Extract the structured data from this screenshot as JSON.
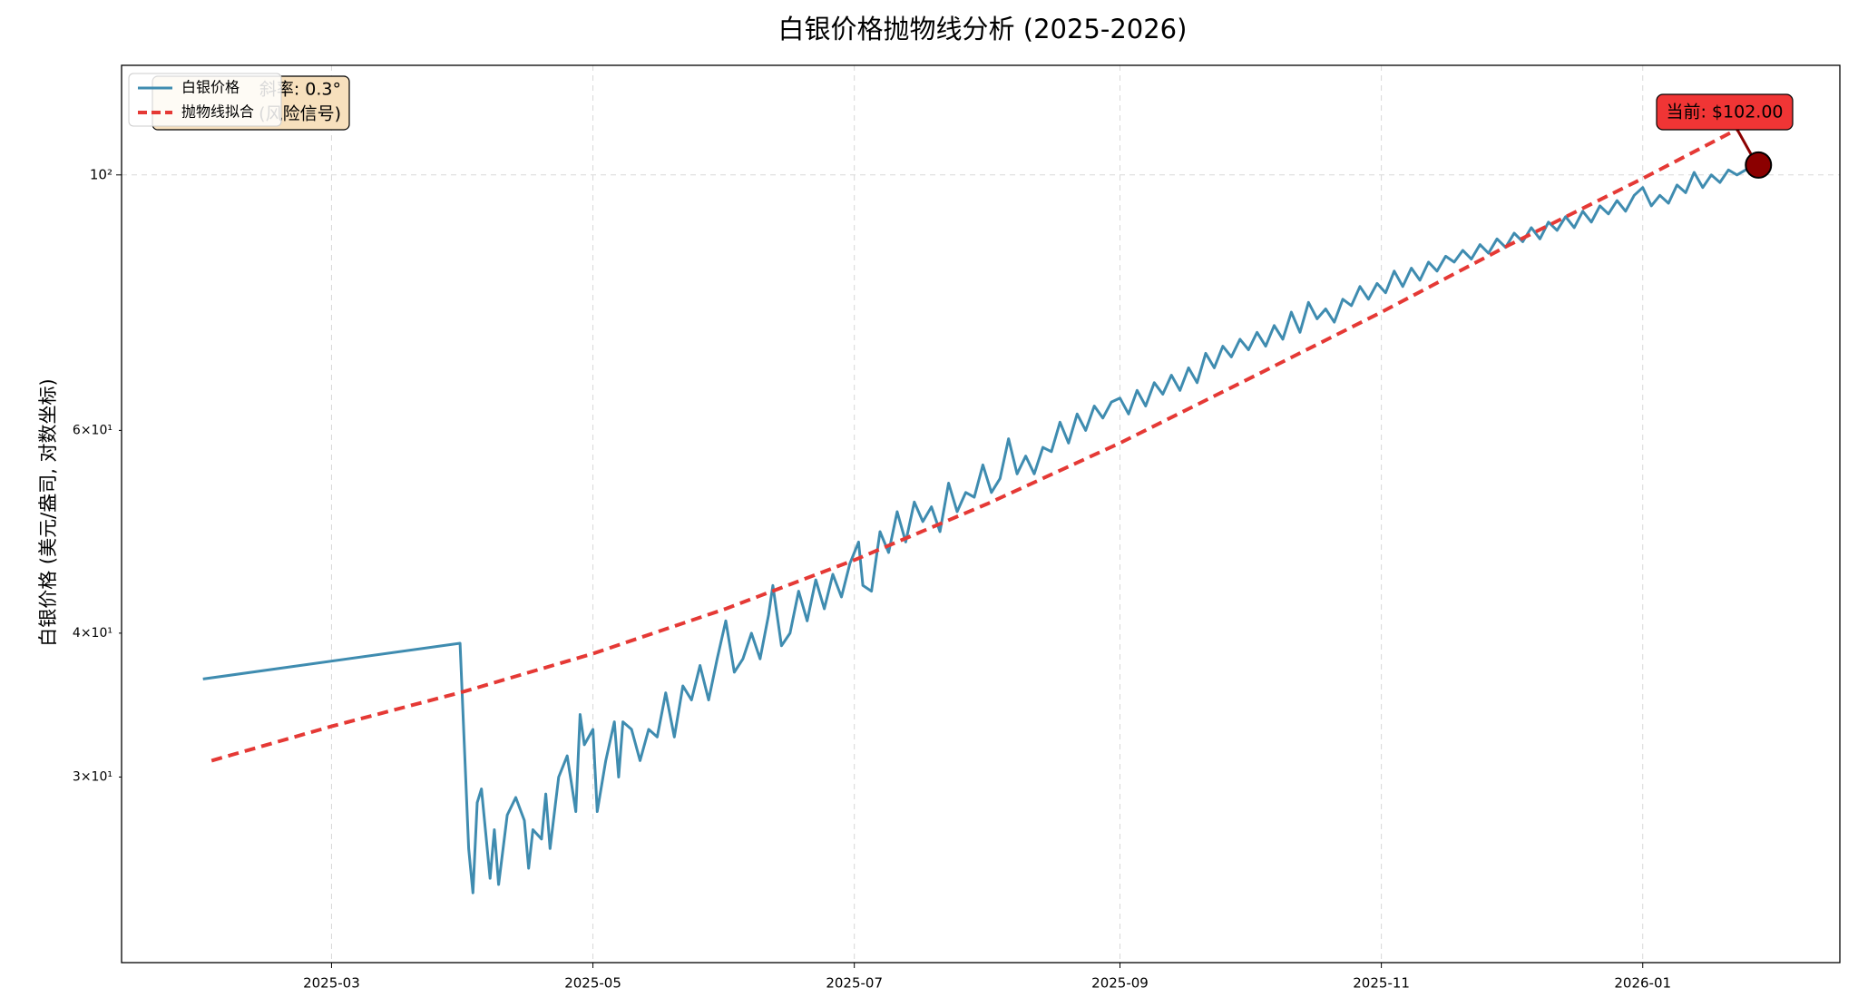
{
  "chart_data": {
    "type": "line",
    "title": "白银价格抛物线分析 (2025-2026)",
    "ylabel": "白银价格 (美元/盎司, 对数坐标)",
    "yscale": "log",
    "grid": true,
    "legend": "upper left",
    "xlim": [
      "2025-01-11",
      "2026-02-16"
    ],
    "xticks": [
      "2025-03",
      "2025-05",
      "2025-07",
      "2025-09",
      "2025-11",
      "2026-01"
    ],
    "ylim": [
      20.7,
      124.5
    ],
    "yticks": [
      {
        "value": 100,
        "label": "10²"
      }
    ],
    "yminorticks": [
      {
        "value": 30,
        "label": "3×10¹"
      },
      {
        "value": 40,
        "label": "4×10¹"
      },
      {
        "value": 60,
        "label": "6×10¹"
      }
    ],
    "info_box": [
      "斜率: 0.3°",
      "(风险信号)"
    ],
    "annotation": "当前: $102.00",
    "series": [
      {
        "name": "白银价格",
        "color": "#3f8cb0",
        "style": "solid",
        "x": [
          "2025-01-30",
          "2025-03-31",
          "2025-04-02",
          "2025-04-03",
          "2025-04-04",
          "2025-04-05",
          "2025-04-07",
          "2025-04-08",
          "2025-04-09",
          "2025-04-11",
          "2025-04-13",
          "2025-04-15",
          "2025-04-16",
          "2025-04-17",
          "2025-04-19",
          "2025-04-20",
          "2025-04-21",
          "2025-04-23",
          "2025-04-25",
          "2025-04-27",
          "2025-04-28",
          "2025-04-29",
          "2025-05-01",
          "2025-05-02",
          "2025-05-04",
          "2025-05-06",
          "2025-05-07",
          "2025-05-08",
          "2025-05-10",
          "2025-05-12",
          "2025-05-14",
          "2025-05-16",
          "2025-05-18",
          "2025-05-20",
          "2025-05-22",
          "2025-05-24",
          "2025-05-26",
          "2025-05-28",
          "2025-05-30",
          "2025-06-01",
          "2025-06-03",
          "2025-06-05",
          "2025-06-07",
          "2025-06-09",
          "2025-06-11",
          "2025-06-12",
          "2025-06-14",
          "2025-06-16",
          "2025-06-18",
          "2025-06-20",
          "2025-06-22",
          "2025-06-24",
          "2025-06-26",
          "2025-06-28",
          "2025-06-30",
          "2025-07-02",
          "2025-07-03",
          "2025-07-05",
          "2025-07-07",
          "2025-07-09",
          "2025-07-11",
          "2025-07-13",
          "2025-07-15",
          "2025-07-17",
          "2025-07-19",
          "2025-07-21",
          "2025-07-23",
          "2025-07-25",
          "2025-07-27",
          "2025-07-29",
          "2025-07-31",
          "2025-08-02",
          "2025-08-04",
          "2025-08-06",
          "2025-08-08",
          "2025-08-10",
          "2025-08-12",
          "2025-08-14",
          "2025-08-16",
          "2025-08-18",
          "2025-08-20",
          "2025-08-22",
          "2025-08-24",
          "2025-08-26",
          "2025-08-28",
          "2025-08-30",
          "2025-09-01",
          "2025-09-03",
          "2025-09-05",
          "2025-09-07",
          "2025-09-09",
          "2025-09-11",
          "2025-09-13",
          "2025-09-15",
          "2025-09-17",
          "2025-09-19",
          "2025-09-21",
          "2025-09-23",
          "2025-09-25",
          "2025-09-27",
          "2025-09-29",
          "2025-10-01",
          "2025-10-03",
          "2025-10-05",
          "2025-10-07",
          "2025-10-09",
          "2025-10-11",
          "2025-10-13",
          "2025-10-15",
          "2025-10-17",
          "2025-10-19",
          "2025-10-21",
          "2025-10-23",
          "2025-10-25",
          "2025-10-27",
          "2025-10-29",
          "2025-10-31",
          "2025-11-02",
          "2025-11-04",
          "2025-11-06",
          "2025-11-08",
          "2025-11-10",
          "2025-11-12",
          "2025-11-14",
          "2025-11-16",
          "2025-11-18",
          "2025-11-20",
          "2025-11-22",
          "2025-11-24",
          "2025-11-26",
          "2025-11-28",
          "2025-11-30",
          "2025-12-02",
          "2025-12-04",
          "2025-12-06",
          "2025-12-08",
          "2025-12-10",
          "2025-12-12",
          "2025-12-14",
          "2025-12-16",
          "2025-12-18",
          "2025-12-20",
          "2025-12-22",
          "2025-12-24",
          "2025-12-26",
          "2025-12-28",
          "2025-12-30",
          "2026-01-01",
          "2026-01-03",
          "2026-01-05",
          "2026-01-07",
          "2026-01-09",
          "2026-01-11",
          "2026-01-13",
          "2026-01-15",
          "2026-01-17",
          "2026-01-19",
          "2026-01-21",
          "2026-01-23",
          "2026-01-25",
          "2026-01-28"
        ],
        "values": [
          36.5,
          39.2,
          26,
          23.8,
          28.5,
          29.3,
          24.5,
          27,
          24.2,
          27.8,
          28.8,
          27.5,
          25,
          27,
          26.5,
          29,
          26,
          30,
          31.3,
          28,
          34,
          32,
          33,
          28,
          31,
          33.5,
          30,
          33.5,
          33,
          31,
          33,
          32.5,
          35.5,
          32.5,
          36,
          35,
          37.5,
          35,
          38,
          41,
          37,
          38,
          40,
          38,
          41.5,
          44,
          39,
          40,
          43.5,
          41,
          44.5,
          42,
          45,
          43,
          46,
          48,
          44,
          43.5,
          49,
          47,
          51,
          48,
          52,
          50,
          51.5,
          49,
          54,
          51,
          53,
          52.5,
          56,
          53,
          54.5,
          59,
          55,
          57,
          55,
          58,
          57.5,
          61,
          58.5,
          62,
          60,
          63,
          61.5,
          63.5,
          64,
          62,
          65,
          63,
          66,
          64.5,
          67,
          65,
          68,
          66,
          70,
          68,
          71,
          69.5,
          72,
          70.5,
          73,
          71,
          74,
          72,
          76,
          73,
          77.5,
          75,
          76.5,
          74.5,
          78,
          77,
          80,
          78,
          80.5,
          79,
          82.5,
          80,
          83,
          81,
          84,
          82.5,
          85,
          84,
          86,
          84.5,
          87,
          85.5,
          88,
          86.5,
          89,
          87.5,
          90,
          88,
          91,
          89.5,
          92,
          90,
          93,
          91,
          94,
          92.5,
          95,
          93,
          96,
          97.5,
          94,
          96,
          94.5,
          98,
          96.5,
          100.5,
          97.5,
          100,
          98.5,
          101,
          100,
          101,
          102
        ]
      },
      {
        "name": "抛物线拟合",
        "color": "#e53935",
        "style": "dashed",
        "x": [
          "2025-02-01",
          "2025-03-01",
          "2025-04-01",
          "2025-05-01",
          "2025-06-01",
          "2025-07-01",
          "2025-08-01",
          "2025-09-01",
          "2025-10-01",
          "2025-11-01",
          "2025-12-01",
          "2026-01-01",
          "2026-01-28"
        ],
        "values": [
          31,
          33.2,
          35.6,
          38.4,
          42,
          46.3,
          51.8,
          58.5,
          66.5,
          76,
          87,
          99.3,
          112
        ]
      }
    ]
  }
}
